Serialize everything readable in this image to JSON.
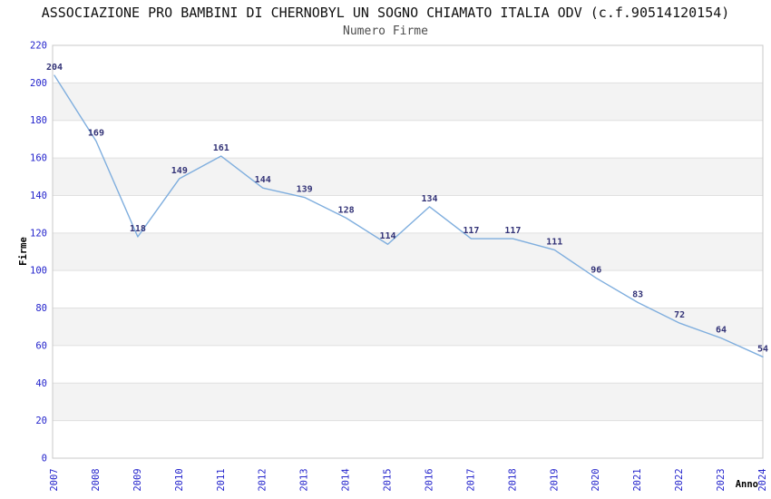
{
  "header": {
    "title": "ASSOCIAZIONE PRO BAMBINI DI CHERNOBYL UN SOGNO CHIAMATO ITALIA ODV (c.f.90514120154)",
    "subtitle": "Numero Firme"
  },
  "chart_data": {
    "type": "line",
    "title": "ASSOCIAZIONE PRO BAMBINI DI CHERNOBYL UN SOGNO CHIAMATO ITALIA ODV (c.f.90514120154)",
    "subtitle": "Numero Firme",
    "xlabel": "Anno",
    "ylabel": "Firme",
    "categories": [
      "2007",
      "2008",
      "2009",
      "2010",
      "2011",
      "2012",
      "2013",
      "2014",
      "2015",
      "2016",
      "2017",
      "2018",
      "2019",
      "2020",
      "2021",
      "2022",
      "2023",
      "2024"
    ],
    "values": [
      204,
      169,
      118,
      149,
      161,
      144,
      139,
      128,
      114,
      134,
      117,
      117,
      111,
      96,
      83,
      72,
      64,
      54
    ],
    "ylim": [
      0,
      220
    ],
    "ytick_step": 20,
    "yticks": [
      0,
      20,
      40,
      60,
      80,
      100,
      120,
      140,
      160,
      180,
      200,
      220
    ],
    "grid": true,
    "alternating_bands": true,
    "legend_position": "none",
    "data_labels_visible": true,
    "x_tick_rotation": -90,
    "colors": {
      "line": "#7faede",
      "data_label": "#333377",
      "tick_label": "#2424cc",
      "band": "#f3f3f3",
      "grid_line": "#e0e0e0",
      "plot_border": "#c8c8c8",
      "title": "#111111",
      "subtitle": "#4d4d4d",
      "axis_title": "#000000",
      "background": "#ffffff"
    }
  }
}
